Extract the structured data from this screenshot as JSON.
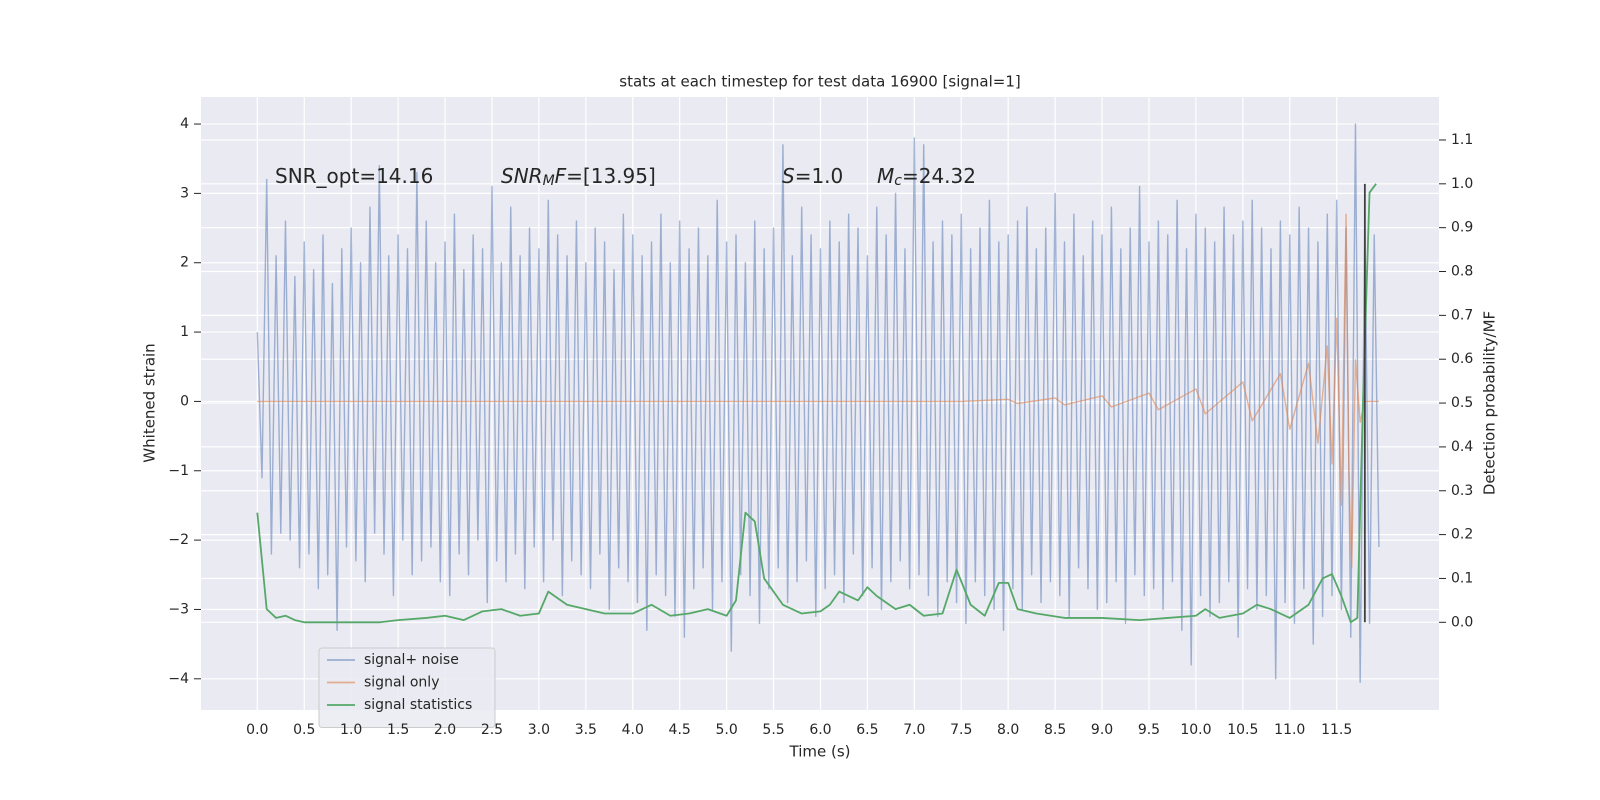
{
  "chart_data": {
    "type": "line",
    "title": "stats at each timestep for test data 16900 [signal=1]",
    "xlabel": "Time (s)",
    "ylabel": "Whitened strain",
    "y2label": "Detection probability/MF",
    "xlim": [
      -0.6,
      12.59
    ],
    "ylim": [
      -4.45,
      4.39
    ],
    "y2lim": [
      -0.2,
      1.198
    ],
    "xticks": [
      {
        "value": 0,
        "label": "0.0"
      },
      0.5,
      {
        "value": 1,
        "label": "1.0"
      },
      1.5,
      {
        "value": 2,
        "label": "2.0"
      },
      2.5,
      {
        "value": 3,
        "label": "3.0"
      },
      3.5,
      {
        "value": 4,
        "label": "4.0"
      },
      4.5,
      {
        "value": 5,
        "label": "5.0"
      },
      5.5,
      {
        "value": 6,
        "label": "6.0"
      },
      6.5,
      {
        "value": 7,
        "label": "7.0"
      },
      7.5,
      {
        "value": 8,
        "label": "8.0"
      },
      8.5,
      {
        "value": 9,
        "label": "9.0"
      },
      9.5,
      {
        "value": 10,
        "label": "10.0"
      },
      10.5,
      {
        "value": 11,
        "label": "11.0"
      },
      11.5
    ],
    "yticks": [
      {
        "value": -4,
        "label": "−4"
      },
      {
        "value": -3,
        "label": "−3"
      },
      {
        "value": -2,
        "label": "−2"
      },
      {
        "value": -1,
        "label": "−1"
      },
      0,
      1,
      2,
      3,
      4
    ],
    "y2ticks": [
      {
        "value": 0,
        "label": "0.0"
      },
      0.1,
      0.2,
      0.3,
      0.4,
      0.5,
      0.6,
      0.7,
      0.8,
      0.9,
      {
        "value": 1,
        "label": "1.0"
      },
      1.1
    ],
    "grid": true,
    "legend": "lower left",
    "annotations": [
      {
        "parts": [
          {
            "text": "SNR_opt=14.16"
          }
        ]
      },
      {
        "parts": [
          {
            "text": "SNR",
            "italic": true
          },
          {
            "text": "M",
            "italic": true,
            "sub": true
          },
          {
            "text": "F",
            "italic": true
          },
          {
            "text": "=[13.95]"
          }
        ]
      },
      {
        "parts": [
          {
            "text": "S",
            "italic": true
          },
          {
            "text": "=1.0"
          }
        ]
      },
      {
        "parts": [
          {
            "text": "M",
            "italic": true
          },
          {
            "text": "c",
            "italic": true,
            "sub": true
          },
          {
            "text": "=24.32"
          }
        ]
      }
    ],
    "series": [
      {
        "name": "signal+ noise",
        "color": "#4c72b0",
        "alpha": 0.5,
        "x": [
          0,
          0.05,
          0.1,
          0.15,
          0.2,
          0.25,
          0.3,
          0.35,
          0.4,
          0.45,
          0.5,
          0.55,
          0.6,
          0.65,
          0.7,
          0.75,
          0.8,
          0.85,
          0.9,
          0.95,
          1,
          1.05,
          1.1,
          1.15,
          1.2,
          1.25,
          1.3,
          1.35,
          1.4,
          1.45,
          1.5,
          1.55,
          1.6,
          1.65,
          1.7,
          1.75,
          1.8,
          1.85,
          1.9,
          1.95,
          2,
          2.05,
          2.1,
          2.15,
          2.2,
          2.25,
          2.3,
          2.35,
          2.4,
          2.45,
          2.5,
          2.55,
          2.6,
          2.65,
          2.7,
          2.75,
          2.8,
          2.85,
          2.9,
          2.95,
          3,
          3.05,
          3.1,
          3.15,
          3.2,
          3.25,
          3.3,
          3.35,
          3.4,
          3.45,
          3.5,
          3.55,
          3.6,
          3.65,
          3.7,
          3.75,
          3.8,
          3.85,
          3.9,
          3.95,
          4,
          4.05,
          4.1,
          4.15,
          4.2,
          4.25,
          4.3,
          4.35,
          4.4,
          4.45,
          4.5,
          4.55,
          4.6,
          4.65,
          4.7,
          4.75,
          4.8,
          4.85,
          4.9,
          4.95,
          5,
          5.05,
          5.1,
          5.15,
          5.2,
          5.25,
          5.3,
          5.35,
          5.4,
          5.45,
          5.5,
          5.55,
          5.6,
          5.65,
          5.7,
          5.75,
          5.8,
          5.85,
          5.9,
          5.95,
          6,
          6.05,
          6.1,
          6.15,
          6.2,
          6.25,
          6.3,
          6.35,
          6.4,
          6.45,
          6.5,
          6.55,
          6.6,
          6.65,
          6.7,
          6.75,
          6.8,
          6.85,
          6.9,
          6.95,
          7,
          7.05,
          7.1,
          7.15,
          7.2,
          7.25,
          7.3,
          7.35,
          7.4,
          7.45,
          7.5,
          7.55,
          7.6,
          7.65,
          7.7,
          7.75,
          7.8,
          7.85,
          7.9,
          7.95,
          8,
          8.05,
          8.1,
          8.15,
          8.2,
          8.25,
          8.3,
          8.35,
          8.4,
          8.45,
          8.5,
          8.55,
          8.6,
          8.65,
          8.7,
          8.75,
          8.8,
          8.85,
          8.9,
          8.95,
          9,
          9.05,
          9.1,
          9.15,
          9.2,
          9.25,
          9.3,
          9.35,
          9.4,
          9.45,
          9.5,
          9.55,
          9.6,
          9.65,
          9.7,
          9.75,
          9.8,
          9.85,
          9.9,
          9.95,
          10,
          10.05,
          10.1,
          10.15,
          10.2,
          10.25,
          10.3,
          10.35,
          10.4,
          10.45,
          10.5,
          10.55,
          10.6,
          10.65,
          10.7,
          10.75,
          10.8,
          10.85,
          10.9,
          10.95,
          11,
          11.05,
          11.1,
          11.15,
          11.2,
          11.25,
          11.3,
          11.35,
          11.4,
          11.45,
          11.5,
          11.55,
          11.6,
          11.65,
          11.7,
          11.75,
          11.8,
          11.85,
          11.9,
          11.95
        ],
        "values": [
          1.0,
          -1.1,
          3.2,
          -2.2,
          2.1,
          -1.9,
          2.6,
          -2.0,
          1.8,
          -2.4,
          2.3,
          -2.2,
          1.9,
          -2.7,
          2.4,
          -2.5,
          1.7,
          -3.3,
          2.2,
          -2.1,
          2.5,
          -2.3,
          2.0,
          -2.6,
          2.8,
          -1.9,
          3.4,
          -2.2,
          2.1,
          -2.8,
          2.4,
          -2.0,
          2.2,
          -2.5,
          3.3,
          -2.3,
          2.6,
          -2.1,
          2.0,
          -2.6,
          2.3,
          -2.8,
          2.7,
          -2.2,
          1.9,
          -2.5,
          2.4,
          -2.0,
          2.2,
          -2.9,
          3.1,
          -2.3,
          2.0,
          -2.6,
          2.8,
          -2.2,
          2.1,
          -2.7,
          2.5,
          -2.1,
          2.2,
          -2.6,
          2.9,
          -2.0,
          2.4,
          -2.8,
          2.1,
          -2.3,
          2.6,
          -2.5,
          2.0,
          -2.7,
          2.5,
          -2.2,
          2.3,
          -3.0,
          1.9,
          -2.4,
          2.7,
          -2.6,
          2.4,
          -2.9,
          2.1,
          -3.3,
          2.3,
          -2.5,
          2.7,
          -2.8,
          2.0,
          -3.1,
          2.6,
          -3.4,
          2.2,
          -2.7,
          2.5,
          -2.4,
          2.1,
          -3.0,
          2.9,
          -2.6,
          2.3,
          -3.6,
          2.4,
          -2.5,
          2.0,
          -2.8,
          2.6,
          -3.2,
          2.2,
          -2.7,
          2.5,
          -2.4,
          3.7,
          -2.9,
          2.1,
          -2.6,
          2.8,
          -2.3,
          2.4,
          -3.1,
          2.2,
          -2.7,
          2.6,
          -2.5,
          2.3,
          -2.9,
          2.7,
          -2.2,
          2.5,
          -2.8,
          2.1,
          -2.4,
          2.8,
          -3.0,
          2.4,
          -2.6,
          3.0,
          -2.3,
          2.2,
          -2.7,
          3.8,
          -2.5,
          3.7,
          -2.8,
          2.3,
          -3.1,
          2.6,
          -2.6,
          2.4,
          -2.9,
          2.7,
          -3.2,
          2.2,
          -2.6,
          2.5,
          -2.8,
          2.9,
          -3.0,
          2.3,
          -3.3,
          2.4,
          -2.7,
          2.6,
          -3.0,
          2.8,
          -2.5,
          2.2,
          -2.9,
          2.5,
          -2.6,
          3.0,
          -2.8,
          2.3,
          -3.1,
          2.7,
          -2.4,
          2.1,
          -2.7,
          2.6,
          -3.0,
          2.4,
          -2.9,
          2.8,
          -2.6,
          2.2,
          -3.2,
          2.5,
          -2.5,
          3.1,
          -2.8,
          2.3,
          -2.7,
          2.6,
          -3.0,
          2.4,
          -2.6,
          2.9,
          -3.3,
          2.2,
          -3.8,
          2.7,
          -2.8,
          2.5,
          -3.1,
          2.3,
          -2.9,
          2.8,
          -2.6,
          2.4,
          -3.4,
          2.6,
          -2.7,
          2.9,
          -3.0,
          2.5,
          -2.8,
          2.2,
          -4.0,
          2.6,
          -2.9,
          2.4,
          -3.2,
          2.8,
          -2.7,
          2.5,
          -3.5,
          2.3,
          -3.1,
          2.7,
          -2.8,
          2.9,
          -3.0,
          2.5,
          -3.4,
          4.0,
          -4.05,
          2.6,
          -3.2,
          2.4,
          -2.1
        ]
      },
      {
        "name": "signal only",
        "color": "#dd8452",
        "alpha": 0.6,
        "x": [
          0,
          7.5,
          8.0,
          8.1,
          8.5,
          8.6,
          9.0,
          9.1,
          9.5,
          9.6,
          10.0,
          10.1,
          10.5,
          10.6,
          10.9,
          11.0,
          11.2,
          11.3,
          11.4,
          11.45,
          11.5,
          11.55,
          11.6,
          11.63,
          11.66,
          11.7,
          11.75,
          11.8,
          11.95
        ],
        "values": [
          0,
          0,
          0.03,
          -0.03,
          0.05,
          -0.05,
          0.08,
          -0.08,
          0.12,
          -0.12,
          0.18,
          -0.18,
          0.28,
          -0.28,
          0.4,
          -0.4,
          0.55,
          -0.6,
          0.8,
          -0.9,
          1.2,
          -1.5,
          2.7,
          -1.0,
          -2.4,
          0.6,
          -0.3,
          0,
          0
        ]
      },
      {
        "name": "signal statistics",
        "color": "#55a868",
        "alpha": 1,
        "axis": "y2",
        "x": [
          0,
          0.1,
          0.2,
          0.3,
          0.4,
          0.5,
          0.7,
          1.0,
          1.3,
          1.5,
          1.8,
          2.0,
          2.2,
          2.4,
          2.6,
          2.8,
          3.0,
          3.1,
          3.3,
          3.5,
          3.7,
          4.0,
          4.2,
          4.4,
          4.6,
          4.8,
          5.0,
          5.1,
          5.2,
          5.3,
          5.4,
          5.6,
          5.8,
          6.0,
          6.1,
          6.2,
          6.4,
          6.5,
          6.6,
          6.8,
          6.95,
          7.1,
          7.3,
          7.45,
          7.6,
          7.75,
          7.9,
          8.0,
          8.1,
          8.3,
          8.6,
          9.0,
          9.4,
          9.7,
          10.0,
          10.1,
          10.25,
          10.5,
          10.65,
          10.8,
          11.0,
          11.2,
          11.35,
          11.45,
          11.55,
          11.65,
          11.72,
          11.78,
          11.85,
          11.92
        ],
        "values": [
          0.25,
          0.03,
          0.01,
          0.015,
          0.005,
          0.0,
          0.0,
          0.0,
          0.0,
          0.005,
          0.01,
          0.015,
          0.005,
          0.025,
          0.03,
          0.015,
          0.02,
          0.07,
          0.04,
          0.03,
          0.02,
          0.02,
          0.04,
          0.015,
          0.02,
          0.03,
          0.015,
          0.05,
          0.25,
          0.23,
          0.1,
          0.04,
          0.02,
          0.025,
          0.04,
          0.07,
          0.05,
          0.08,
          0.06,
          0.03,
          0.04,
          0.015,
          0.02,
          0.12,
          0.04,
          0.015,
          0.09,
          0.09,
          0.03,
          0.02,
          0.01,
          0.01,
          0.005,
          0.01,
          0.015,
          0.03,
          0.01,
          0.02,
          0.04,
          0.03,
          0.01,
          0.04,
          0.1,
          0.11,
          0.06,
          0.0,
          0.01,
          0.5,
          0.98,
          1.0
        ]
      }
    ],
    "vlines": [
      {
        "x": 11.8,
        "ymin": 0,
        "ymax": 1.0,
        "axis": "y2",
        "color": "#404040"
      }
    ]
  }
}
